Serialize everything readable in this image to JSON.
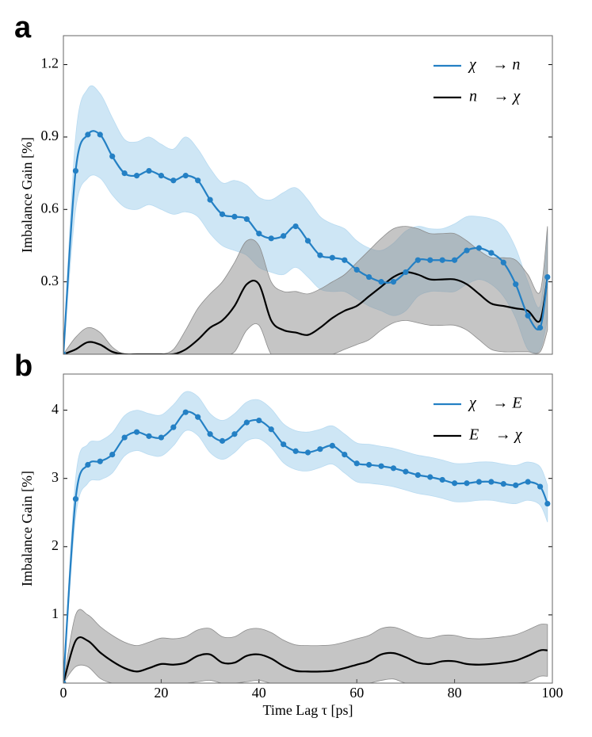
{
  "charts": [
    {
      "chart_data": {
        "type": "line",
        "panel_label": "a",
        "ylabel": "Imbalance Gain [%]",
        "x": [
          0,
          2.5,
          5,
          7.5,
          10,
          12.5,
          15,
          17.5,
          20,
          22.5,
          25,
          27.5,
          30,
          32.5,
          35,
          37.5,
          40,
          42.5,
          45,
          47.5,
          50,
          52.5,
          55,
          57.5,
          60,
          62.5,
          65,
          67.5,
          70,
          72.5,
          75,
          77.5,
          80,
          82.5,
          85,
          87.5,
          90,
          92.5,
          95,
          97.5,
          99
        ],
        "xlim": [
          0,
          100
        ],
        "ylim": [
          0,
          1.32
        ],
        "yticks": [
          0.3,
          0.6,
          0.9,
          1.2
        ],
        "legend": "upper right",
        "series": [
          {
            "name": "χ⃗ → n⃗",
            "color": "#2480c4",
            "band_color": "#b9dbf1",
            "markers": true,
            "values": [
              0,
              0.76,
              0.91,
              0.91,
              0.82,
              0.75,
              0.74,
              0.76,
              0.74,
              0.72,
              0.74,
              0.72,
              0.64,
              0.58,
              0.57,
              0.56,
              0.5,
              0.48,
              0.49,
              0.53,
              0.47,
              0.41,
              0.4,
              0.39,
              0.35,
              0.32,
              0.3,
              0.3,
              0.34,
              0.39,
              0.39,
              0.39,
              0.39,
              0.43,
              0.44,
              0.42,
              0.38,
              0.29,
              0.16,
              0.11,
              0.32
            ],
            "upper": [
              0,
              0.9,
              1.1,
              1.08,
              0.98,
              0.89,
              0.88,
              0.9,
              0.87,
              0.85,
              0.9,
              0.85,
              0.77,
              0.71,
              0.72,
              0.7,
              0.65,
              0.64,
              0.67,
              0.69,
              0.64,
              0.57,
              0.54,
              0.52,
              0.47,
              0.44,
              0.43,
              0.46,
              0.51,
              0.53,
              0.52,
              0.52,
              0.54,
              0.57,
              0.57,
              0.56,
              0.53,
              0.44,
              0.3,
              0.2,
              0.5
            ],
            "lower": [
              0,
              0.6,
              0.73,
              0.73,
              0.66,
              0.61,
              0.6,
              0.62,
              0.6,
              0.58,
              0.59,
              0.57,
              0.5,
              0.45,
              0.43,
              0.41,
              0.36,
              0.34,
              0.33,
              0.36,
              0.32,
              0.27,
              0.26,
              0.26,
              0.23,
              0.2,
              0.18,
              0.16,
              0.18,
              0.24,
              0.26,
              0.26,
              0.26,
              0.29,
              0.31,
              0.29,
              0.24,
              0.15,
              0.02,
              0.02,
              0.15
            ]
          },
          {
            "name": "n⃗ → χ⃗",
            "color": "#000000",
            "band_color": "#8c8c8c",
            "markers": false,
            "values": [
              0,
              0.02,
              0.05,
              0.04,
              0.01,
              0,
              0,
              0,
              0,
              0,
              0.02,
              0.06,
              0.11,
              0.14,
              0.2,
              0.29,
              0.29,
              0.14,
              0.1,
              0.09,
              0.08,
              0.11,
              0.15,
              0.18,
              0.2,
              0.24,
              0.28,
              0.32,
              0.34,
              0.33,
              0.31,
              0.31,
              0.31,
              0.29,
              0.25,
              0.21,
              0.2,
              0.19,
              0.18,
              0.14,
              0.32
            ],
            "upper": [
              0,
              0.07,
              0.11,
              0.09,
              0.03,
              0,
              0,
              0,
              0,
              0.02,
              0.1,
              0.19,
              0.25,
              0.3,
              0.38,
              0.47,
              0.45,
              0.3,
              0.26,
              0.26,
              0.25,
              0.27,
              0.3,
              0.33,
              0.38,
              0.43,
              0.48,
              0.52,
              0.53,
              0.52,
              0.5,
              0.5,
              0.5,
              0.47,
              0.43,
              0.4,
              0.4,
              0.39,
              0.33,
              0.26,
              0.53
            ],
            "lower": [
              0,
              0,
              0,
              0,
              0,
              0,
              0,
              0,
              0,
              0,
              0,
              0,
              0,
              0,
              0.01,
              0.1,
              0.12,
              0,
              0,
              0,
              0,
              0,
              0,
              0.02,
              0.04,
              0.06,
              0.1,
              0.13,
              0.14,
              0.13,
              0.12,
              0.12,
              0.12,
              0.1,
              0.06,
              0.02,
              0.01,
              0.01,
              0.01,
              0.01,
              0.1
            ]
          }
        ]
      }
    },
    {
      "chart_data": {
        "type": "line",
        "panel_label": "b",
        "ylabel": "Imbalance Gain [%]",
        "xlabel": "Time Lag τ [ps]",
        "x": [
          0,
          2.5,
          5,
          7.5,
          10,
          12.5,
          15,
          17.5,
          20,
          22.5,
          25,
          27.5,
          30,
          32.5,
          35,
          37.5,
          40,
          42.5,
          45,
          47.5,
          50,
          52.5,
          55,
          57.5,
          60,
          62.5,
          65,
          67.5,
          70,
          72.5,
          75,
          77.5,
          80,
          82.5,
          85,
          87.5,
          90,
          92.5,
          95,
          97.5,
          99
        ],
        "xlim": [
          0,
          100
        ],
        "ylim": [
          0,
          4.53
        ],
        "xticks": [
          0,
          20,
          40,
          60,
          80,
          100
        ],
        "yticks": [
          1,
          2,
          3,
          4
        ],
        "legend": "upper right",
        "series": [
          {
            "name": "χ⃗ → E⃗",
            "color": "#2480c4",
            "band_color": "#b9dbf1",
            "markers": true,
            "values": [
              0,
              2.7,
              3.2,
              3.25,
              3.35,
              3.6,
              3.68,
              3.62,
              3.6,
              3.75,
              3.97,
              3.9,
              3.65,
              3.55,
              3.65,
              3.82,
              3.85,
              3.72,
              3.5,
              3.4,
              3.38,
              3.43,
              3.48,
              3.35,
              3.22,
              3.2,
              3.18,
              3.15,
              3.1,
              3.05,
              3.02,
              2.98,
              2.93,
              2.93,
              2.95,
              2.95,
              2.92,
              2.9,
              2.95,
              2.88,
              2.63
            ],
            "upper": [
              0,
              3.0,
              3.5,
              3.55,
              3.67,
              3.92,
              4.0,
              3.95,
              3.93,
              4.08,
              4.27,
              4.2,
              3.95,
              3.85,
              3.95,
              4.12,
              4.15,
              4.02,
              3.8,
              3.7,
              3.68,
              3.72,
              3.77,
              3.65,
              3.52,
              3.5,
              3.47,
              3.44,
              3.39,
              3.34,
              3.31,
              3.27,
              3.22,
              3.22,
              3.24,
              3.24,
              3.21,
              3.19,
              3.24,
              3.17,
              2.9
            ],
            "lower": [
              0,
              2.43,
              2.93,
              2.98,
              3.08,
              3.33,
              3.41,
              3.35,
              3.33,
              3.48,
              3.7,
              3.63,
              3.38,
              3.28,
              3.38,
              3.55,
              3.58,
              3.45,
              3.23,
              3.13,
              3.11,
              3.16,
              3.21,
              3.08,
              2.95,
              2.93,
              2.91,
              2.88,
              2.83,
              2.78,
              2.75,
              2.71,
              2.66,
              2.66,
              2.68,
              2.68,
              2.65,
              2.63,
              2.68,
              2.61,
              2.36
            ]
          },
          {
            "name": "E⃗ → χ⃗",
            "color": "#000000",
            "band_color": "#8c8c8c",
            "markers": false,
            "values": [
              0,
              0.62,
              0.62,
              0.45,
              0.32,
              0.22,
              0.17,
              0.22,
              0.28,
              0.27,
              0.3,
              0.4,
              0.42,
              0.3,
              0.3,
              0.4,
              0.42,
              0.36,
              0.25,
              0.18,
              0.17,
              0.17,
              0.18,
              0.22,
              0.27,
              0.32,
              0.42,
              0.44,
              0.38,
              0.3,
              0.28,
              0.32,
              0.32,
              0.28,
              0.27,
              0.28,
              0.3,
              0.33,
              0.4,
              0.48,
              0.48
            ],
            "upper": [
              0,
              1.0,
              1.0,
              0.83,
              0.7,
              0.6,
              0.55,
              0.6,
              0.66,
              0.65,
              0.68,
              0.78,
              0.8,
              0.68,
              0.68,
              0.78,
              0.8,
              0.74,
              0.63,
              0.56,
              0.55,
              0.55,
              0.56,
              0.6,
              0.65,
              0.7,
              0.8,
              0.82,
              0.76,
              0.68,
              0.66,
              0.7,
              0.7,
              0.66,
              0.65,
              0.66,
              0.68,
              0.71,
              0.78,
              0.86,
              0.86
            ],
            "lower": [
              0,
              0.24,
              0.24,
              0.07,
              0,
              0,
              0,
              0,
              0,
              0,
              0,
              0.02,
              0.04,
              0,
              0,
              0.02,
              0.04,
              0,
              0,
              0,
              0,
              0,
              0,
              0,
              0,
              0,
              0.04,
              0.06,
              0,
              0,
              0,
              0,
              0,
              0,
              0,
              0,
              0,
              0,
              0.02,
              0.1,
              0.1
            ]
          }
        ]
      }
    }
  ]
}
